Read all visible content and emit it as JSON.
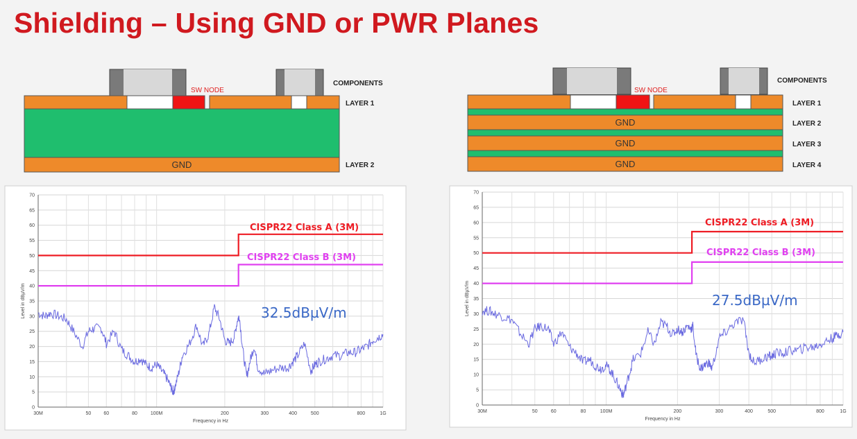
{
  "title": "Shielding – Using GND or PWR Planes",
  "colors": {
    "title": "#d0191f",
    "copper": "#ee8a2a",
    "dielectric": "#1fbe6e",
    "sw_node": "#f01414",
    "class_a": "#ee1c24",
    "class_b": "#e040f0",
    "trace": "#6a6ae0",
    "annotation": "#3a68c6"
  },
  "stackups": [
    {
      "components_label": "COMPONENTS",
      "sw_node_label": "SW NODE",
      "layers": [
        {
          "label": "LAYER 1",
          "fill": ""
        },
        {
          "label": "LAYER 2",
          "fill": "GND"
        }
      ]
    },
    {
      "components_label": "COMPONENTS",
      "sw_node_label": "SW NODE",
      "layers": [
        {
          "label": "LAYER 1",
          "fill": ""
        },
        {
          "label": "LAYER 2",
          "fill": "GND"
        },
        {
          "label": "LAYER 3",
          "fill": "GND"
        },
        {
          "label": "LAYER 4",
          "fill": "GND"
        }
      ]
    }
  ],
  "chart_data": [
    {
      "type": "line",
      "xscale": "log",
      "xlim_hz": [
        30000000,
        1000000000
      ],
      "ylim": [
        0,
        70
      ],
      "grid": true,
      "xlabel": "Frequency in Hz",
      "ylabel": "Level in dBµV/m",
      "x_tick_labels": [
        {
          "label": "30M",
          "hz": 30000000
        },
        {
          "label": "50",
          "hz": 50000000
        },
        {
          "label": "60",
          "hz": 60000000
        },
        {
          "label": "80",
          "hz": 80000000
        },
        {
          "label": "100M",
          "hz": 100000000
        },
        {
          "label": "200",
          "hz": 200000000
        },
        {
          "label": "300",
          "hz": 300000000
        },
        {
          "label": "400",
          "hz": 400000000
        },
        {
          "label": "500",
          "hz": 500000000
        },
        {
          "label": "800",
          "hz": 800000000
        },
        {
          "label": "1G",
          "hz": 1000000000
        }
      ],
      "y_ticks": [
        0,
        5,
        10,
        15,
        20,
        25,
        30,
        35,
        40,
        45,
        50,
        55,
        60,
        65,
        70
      ],
      "limits": [
        {
          "name": "CISPR22 Class A (3M)",
          "points": [
            [
              30000000,
              50
            ],
            [
              230000000,
              50
            ],
            [
              230000000,
              57
            ],
            [
              1000000000,
              57
            ]
          ]
        },
        {
          "name": "CISPR22 Class B (3M)",
          "points": [
            [
              30000000,
              40
            ],
            [
              230000000,
              40
            ],
            [
              230000000,
              47
            ],
            [
              1000000000,
              47
            ]
          ]
        }
      ],
      "annotation": "32.5dBµV/m",
      "series": [
        {
          "x_hz": [
            30000000,
            32000000,
            34000000,
            37000000,
            40000000,
            43000000,
            47000000,
            50000000,
            53000000,
            57000000,
            60000000,
            65000000,
            70000000,
            75000000,
            80000000,
            85000000,
            90000000,
            95000000,
            100000000,
            105000000,
            110000000,
            115000000,
            118000000,
            120000000,
            125000000,
            130000000,
            140000000,
            150000000,
            160000000,
            170000000,
            180000000,
            190000000,
            200000000,
            210000000,
            220000000,
            228000000,
            232000000,
            240000000,
            250000000,
            260000000,
            270000000,
            280000000,
            300000000,
            320000000,
            350000000,
            380000000,
            400000000,
            420000000,
            450000000,
            480000000,
            500000000,
            520000000,
            560000000,
            600000000,
            650000000,
            700000000,
            750000000,
            800000000,
            850000000,
            900000000,
            950000000,
            1000000000
          ],
          "values": [
            31,
            30,
            31,
            30,
            29,
            25,
            20,
            25,
            26,
            26,
            21,
            25,
            19,
            17,
            15,
            16,
            14,
            13,
            14,
            12,
            10,
            7,
            5,
            6,
            11,
            17,
            21,
            27,
            20,
            24,
            33,
            29,
            22,
            21,
            23,
            29,
            30,
            19,
            10,
            16,
            20,
            13,
            11,
            12,
            13,
            13,
            15,
            17,
            21,
            12,
            14,
            15,
            16,
            17,
            17,
            18,
            18,
            19,
            20,
            22,
            23,
            24
          ]
        }
      ]
    },
    {
      "type": "line",
      "xscale": "log",
      "xlim_hz": [
        30000000,
        1000000000
      ],
      "ylim": [
        0,
        70
      ],
      "grid": true,
      "xlabel": "Frequency in Hz",
      "ylabel": "Level in dBµV/m",
      "x_tick_labels": [
        {
          "label": "30M",
          "hz": 30000000
        },
        {
          "label": "50",
          "hz": 50000000
        },
        {
          "label": "60",
          "hz": 60000000
        },
        {
          "label": "80",
          "hz": 80000000
        },
        {
          "label": "100M",
          "hz": 100000000
        },
        {
          "label": "200",
          "hz": 200000000
        },
        {
          "label": "300",
          "hz": 300000000
        },
        {
          "label": "400",
          "hz": 400000000
        },
        {
          "label": "500",
          "hz": 500000000
        },
        {
          "label": "800",
          "hz": 800000000
        },
        {
          "label": "1G",
          "hz": 1000000000
        }
      ],
      "y_ticks": [
        0,
        5,
        10,
        15,
        20,
        25,
        30,
        35,
        40,
        45,
        50,
        55,
        60,
        65,
        70
      ],
      "limits": [
        {
          "name": "CISPR22 Class A (3M)",
          "points": [
            [
              30000000,
              50
            ],
            [
              230000000,
              50
            ],
            [
              230000000,
              57
            ],
            [
              1000000000,
              57
            ]
          ]
        },
        {
          "name": "CISPR22 Class B (3M)",
          "points": [
            [
              30000000,
              40
            ],
            [
              230000000,
              40
            ],
            [
              230000000,
              47
            ],
            [
              1000000000,
              47
            ]
          ]
        }
      ],
      "annotation": "27.5dBµV/m",
      "series": [
        {
          "x_hz": [
            30000000,
            32000000,
            34000000,
            37000000,
            40000000,
            43000000,
            47000000,
            50000000,
            53000000,
            57000000,
            60000000,
            65000000,
            70000000,
            75000000,
            80000000,
            85000000,
            90000000,
            95000000,
            100000000,
            105000000,
            110000000,
            115000000,
            118000000,
            120000000,
            125000000,
            130000000,
            140000000,
            150000000,
            160000000,
            170000000,
            180000000,
            190000000,
            200000000,
            210000000,
            220000000,
            228000000,
            232000000,
            240000000,
            250000000,
            260000000,
            270000000,
            280000000,
            300000000,
            320000000,
            350000000,
            380000000,
            400000000,
            420000000,
            450000000,
            480000000,
            500000000,
            520000000,
            560000000,
            600000000,
            650000000,
            700000000,
            750000000,
            800000000,
            850000000,
            900000000,
            950000000,
            1000000000
          ],
          "values": [
            31,
            31,
            30,
            29,
            28,
            24,
            20,
            25,
            26,
            25,
            20,
            24,
            19,
            17,
            14,
            15,
            13,
            12,
            13,
            11,
            8,
            5,
            3,
            5,
            10,
            15,
            17,
            24,
            20,
            27,
            26,
            23,
            25,
            24,
            26,
            25,
            26,
            16,
            12,
            13,
            14,
            12,
            22,
            24,
            27,
            28,
            17,
            14,
            15,
            16,
            16,
            17,
            17,
            18,
            18,
            19,
            19,
            20,
            21,
            22,
            23,
            24
          ]
        }
      ]
    }
  ]
}
